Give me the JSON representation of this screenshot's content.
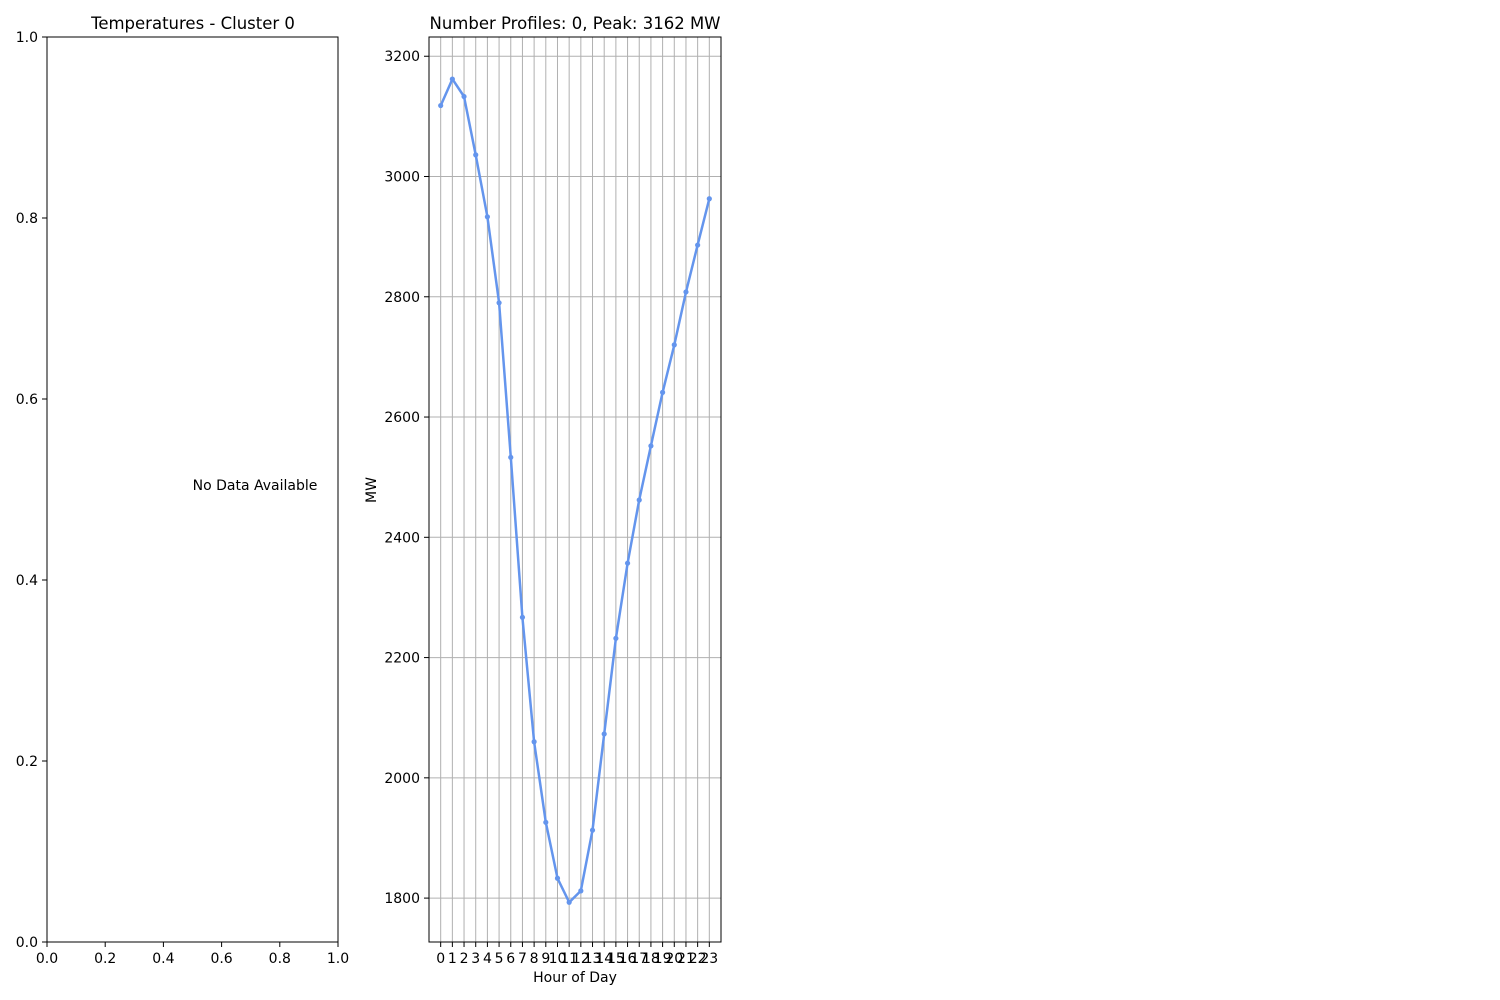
{
  "chart_data": [
    {
      "type": "line",
      "title": "Temperatures - Cluster 0",
      "xlabel": "",
      "ylabel": "",
      "xlim": [
        0,
        1
      ],
      "ylim": [
        0,
        1
      ],
      "xticks": [
        "0.0",
        "0.2",
        "0.4",
        "0.6",
        "0.8",
        "1.0"
      ],
      "yticks": [
        "0.0",
        "0.2",
        "0.4",
        "0.6",
        "0.8",
        "1.0"
      ],
      "annotation": "No Data Available",
      "grid": false,
      "series": []
    },
    {
      "type": "line",
      "title": "Number Profiles: 0, Peak: 3162 MW",
      "xlabel": "Hour of Day",
      "ylabel": "MW",
      "xlim": [
        -1,
        24
      ],
      "ylim": [
        1727,
        3232
      ],
      "xticks": [
        0,
        1,
        2,
        3,
        4,
        5,
        6,
        7,
        8,
        9,
        10,
        11,
        12,
        13,
        14,
        15,
        16,
        17,
        18,
        19,
        20,
        21,
        22,
        23
      ],
      "yticks": [
        1800,
        2000,
        2200,
        2400,
        2600,
        2800,
        3000,
        3200
      ],
      "grid": true,
      "color": "#6495ED",
      "series": [
        {
          "x": [
            0,
            1,
            2,
            3,
            4,
            5,
            6,
            7,
            8,
            9,
            10,
            11,
            12,
            13,
            14,
            15,
            16,
            17,
            18,
            19,
            20,
            21,
            22,
            23
          ],
          "values": [
            3118,
            3162,
            3133,
            3036,
            2933,
            2790,
            2533,
            2267,
            2060,
            1926,
            1833,
            1793,
            1812,
            1913,
            2073,
            2232,
            2357,
            2462,
            2552,
            2641,
            2720,
            2808,
            2886,
            2963
          ]
        }
      ]
    }
  ]
}
